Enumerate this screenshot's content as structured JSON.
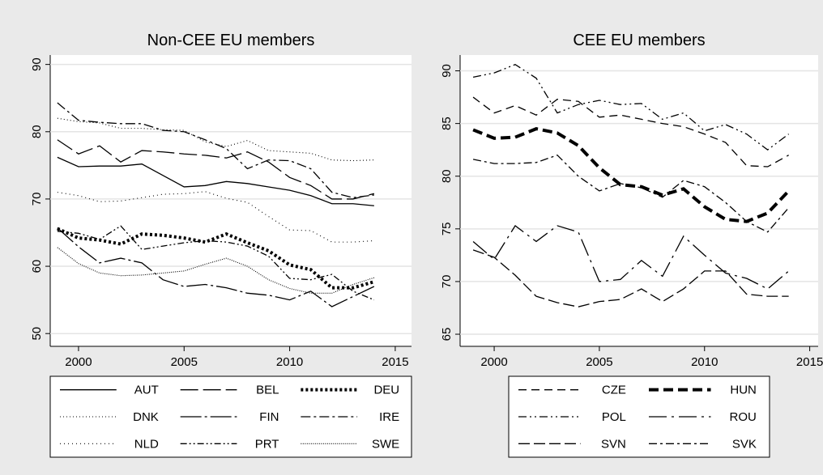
{
  "chart_data": [
    {
      "type": "line",
      "title": "Non-CEE EU members",
      "x": [
        1999,
        2000,
        2001,
        2002,
        2003,
        2004,
        2005,
        2006,
        2007,
        2008,
        2009,
        2010,
        2011,
        2012,
        2013,
        2014
      ],
      "xlim": [
        1998.66,
        2015.77
      ],
      "xticks": [
        2000,
        2005,
        2010,
        2015
      ],
      "ylim": [
        48.1,
        91.4
      ],
      "yticks": [
        50,
        60,
        70,
        80,
        90
      ],
      "grid": true,
      "legend_columns": 3,
      "series": [
        {
          "name": "AUT",
          "color": "#000000",
          "dash": "none",
          "width": 1.3,
          "values": [
            76.2,
            74.8,
            74.9,
            74.9,
            75.2,
            73.5,
            71.8,
            72.0,
            72.6,
            72.3,
            71.8,
            71.3,
            70.5,
            69.3,
            69.3,
            69.0
          ]
        },
        {
          "name": "BEL",
          "color": "#000000",
          "dash": "22 6",
          "width": 1.3,
          "values": [
            78.8,
            76.7,
            77.9,
            75.5,
            77.2,
            77.0,
            76.7,
            76.5,
            76.1,
            77.0,
            75.5,
            73.2,
            72.0,
            70.0,
            70.0,
            70.8
          ]
        },
        {
          "name": "DEU",
          "color": "#000000",
          "dash": "3 3",
          "width": 4,
          "values": [
            65.6,
            64.2,
            63.9,
            63.3,
            64.8,
            64.6,
            64.2,
            63.6,
            64.8,
            63.5,
            62.3,
            60.2,
            59.5,
            56.8,
            56.8,
            57.7
          ]
        },
        {
          "name": "DNK",
          "color": "#000000",
          "dash": "1 3",
          "width": 1.1,
          "values": [
            82.0,
            81.5,
            81.3,
            80.5,
            80.5,
            80.3,
            80.2,
            78.5,
            77.8,
            78.7,
            77.2,
            77.0,
            76.8,
            75.8,
            75.7,
            75.8
          ]
        },
        {
          "name": "FIN",
          "color": "#000000",
          "dash": "26 4 3 4",
          "width": 1.3,
          "values": [
            65.7,
            62.9,
            60.5,
            61.2,
            60.5,
            58.0,
            57.0,
            57.3,
            56.8,
            56.0,
            55.7,
            55.0,
            56.3,
            54.0,
            55.5,
            57.0
          ]
        },
        {
          "name": "IRE",
          "color": "#000000",
          "dash": "12 4 3 4",
          "width": 1.3,
          "values": [
            84.3,
            81.7,
            81.4,
            81.2,
            81.2,
            80.2,
            80.0,
            78.8,
            77.5,
            74.5,
            75.8,
            75.7,
            74.5,
            71.0,
            70.2,
            70.6
          ]
        },
        {
          "name": "NLD",
          "color": "#000000",
          "dash": "1 4",
          "width": 1.1,
          "values": [
            71.0,
            70.5,
            69.6,
            69.7,
            70.2,
            70.7,
            70.8,
            71.1,
            70.1,
            69.5,
            67.4,
            65.4,
            65.3,
            63.6,
            63.6,
            63.8
          ]
        },
        {
          "name": "PRT",
          "color": "#000000",
          "dash": "8 3 2 3 2 3",
          "width": 1.3,
          "values": [
            65.2,
            64.9,
            64.0,
            66.0,
            62.5,
            63.0,
            63.5,
            63.8,
            63.6,
            63.0,
            61.5,
            58.2,
            58.0,
            58.8,
            56.3,
            55.0
          ]
        },
        {
          "name": "SWE",
          "color": "#000000",
          "dash": "1 1.5",
          "width": 1.1,
          "values": [
            62.8,
            60.4,
            59.0,
            58.6,
            58.7,
            59.0,
            59.3,
            60.3,
            61.2,
            60.0,
            58.0,
            56.7,
            56.0,
            56.0,
            57.3,
            58.3
          ]
        }
      ]
    },
    {
      "type": "line",
      "title": "CEE EU members",
      "x": [
        1999,
        2000,
        2001,
        2002,
        2003,
        2004,
        2005,
        2006,
        2007,
        2008,
        2009,
        2010,
        2011,
        2012,
        2013,
        2014
      ],
      "xlim": [
        1998.38,
        2015.4
      ],
      "xticks": [
        2000,
        2005,
        2010,
        2015
      ],
      "ylim": [
        63.85,
        91.5
      ],
      "yticks": [
        65,
        70,
        75,
        80,
        85,
        90
      ],
      "grid": true,
      "legend_columns": 2,
      "series": [
        {
          "name": "CZE",
          "color": "#000000",
          "dash": "10 6",
          "width": 1.3,
          "values": [
            87.5,
            86.0,
            86.7,
            85.8,
            87.3,
            87.1,
            85.6,
            85.8,
            85.4,
            85.0,
            84.7,
            84.0,
            83.2,
            81.0,
            80.9,
            82.0
          ]
        },
        {
          "name": "HUN",
          "color": "#000000",
          "dash": "12 6",
          "width": 4,
          "values": [
            84.4,
            83.6,
            83.7,
            84.5,
            84.1,
            82.9,
            80.8,
            79.2,
            79.0,
            78.2,
            78.8,
            77.1,
            75.9,
            75.7,
            76.5,
            78.6
          ]
        },
        {
          "name": "POL",
          "color": "#000000",
          "dash": "10 4 2 4 2 4",
          "width": 1.3,
          "values": [
            89.4,
            89.8,
            90.6,
            89.3,
            86.0,
            86.8,
            87.2,
            86.8,
            86.9,
            85.4,
            86.0,
            84.3,
            84.9,
            84.0,
            82.5,
            84.0
          ]
        },
        {
          "name": "ROU",
          "color": "#000000",
          "dash": "22 6 3 6",
          "width": 1.3,
          "values": [
            73.8,
            72.1,
            75.3,
            73.8,
            75.3,
            74.7,
            70.0,
            70.2,
            72.0,
            70.5,
            74.3,
            72.5,
            70.8,
            70.3,
            69.3,
            71.0
          ]
        },
        {
          "name": "SVN",
          "color": "#000000",
          "dash": "14 5",
          "width": 1.3,
          "values": [
            73.0,
            72.3,
            70.6,
            68.6,
            68.0,
            67.6,
            68.1,
            68.3,
            69.3,
            68.1,
            69.3,
            71.0,
            71.0,
            68.8,
            68.6,
            68.6
          ]
        },
        {
          "name": "SVK",
          "color": "#000000",
          "dash": "10 4 3 4",
          "width": 1.3,
          "values": [
            81.6,
            81.2,
            81.2,
            81.3,
            82.0,
            80.0,
            78.6,
            79.3,
            78.9,
            78.0,
            79.6,
            79.0,
            77.5,
            75.7,
            74.7,
            77.0
          ]
        }
      ]
    }
  ]
}
